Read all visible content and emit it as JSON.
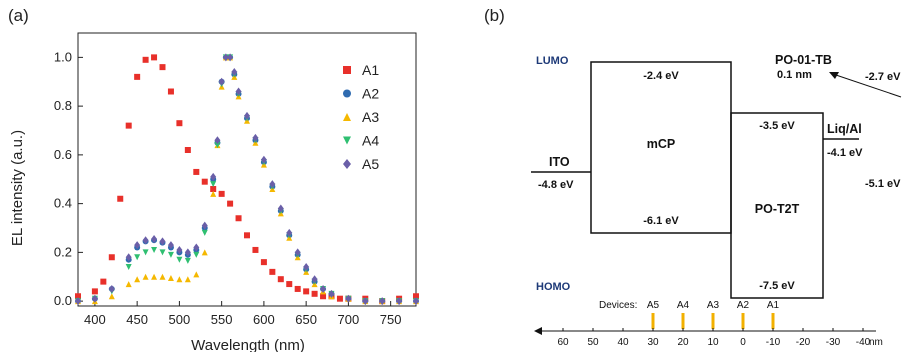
{
  "panel_a_label": "(a)",
  "panel_b_label": "(b)",
  "chart_data": {
    "type": "scatter",
    "xlabel": "Wavelength (nm)",
    "ylabel": "EL intensity (a.u.)",
    "xlim": [
      380,
      780
    ],
    "ylim": [
      -0.02,
      1.1
    ],
    "xticks": [
      400,
      450,
      500,
      550,
      600,
      650,
      700,
      750
    ],
    "yticks": [
      0.0,
      0.2,
      0.4,
      0.6,
      0.8,
      1.0
    ],
    "tick_labels_x": [
      "400",
      "450",
      "500",
      "550",
      "600",
      "650",
      "700",
      "750"
    ],
    "tick_labels_y": [
      "0.0",
      "0.2",
      "0.4",
      "0.6",
      "0.8",
      "1.0"
    ],
    "legend_position": "top-right",
    "grid": false,
    "series": [
      {
        "name": "A1",
        "color": "#e8302a",
        "marker": "square",
        "x": [
          380,
          400,
          410,
          420,
          430,
          440,
          450,
          460,
          470,
          480,
          490,
          500,
          510,
          520,
          530,
          540,
          550,
          560,
          570,
          580,
          590,
          600,
          610,
          620,
          630,
          640,
          650,
          660,
          670,
          680,
          690,
          700,
          720,
          740,
          760,
          780
        ],
        "y": [
          0.02,
          0.04,
          0.08,
          0.18,
          0.42,
          0.72,
          0.92,
          0.99,
          1.0,
          0.96,
          0.86,
          0.73,
          0.62,
          0.53,
          0.49,
          0.46,
          0.44,
          0.4,
          0.34,
          0.27,
          0.21,
          0.16,
          0.12,
          0.09,
          0.07,
          0.05,
          0.04,
          0.03,
          0.02,
          0.02,
          0.01,
          0.01,
          0.01,
          0.0,
          0.01,
          0.02
        ]
      },
      {
        "name": "A2",
        "color": "#2f6bb0",
        "marker": "circle",
        "x": [
          380,
          400,
          420,
          440,
          450,
          460,
          470,
          480,
          490,
          500,
          510,
          520,
          530,
          540,
          545,
          550,
          555,
          560,
          565,
          570,
          580,
          590,
          600,
          610,
          620,
          630,
          640,
          650,
          660,
          670,
          680,
          700,
          720,
          740,
          760,
          780
        ],
        "y": [
          0.0,
          0.01,
          0.05,
          0.17,
          0.22,
          0.245,
          0.25,
          0.24,
          0.22,
          0.2,
          0.19,
          0.21,
          0.3,
          0.5,
          0.65,
          0.9,
          1.0,
          1.0,
          0.93,
          0.85,
          0.75,
          0.66,
          0.57,
          0.47,
          0.37,
          0.27,
          0.19,
          0.13,
          0.08,
          0.05,
          0.03,
          0.01,
          0.0,
          0.0,
          0.0,
          0.0
        ]
      },
      {
        "name": "A3",
        "color": "#f5b800",
        "marker": "triangle-up",
        "x": [
          380,
          400,
          420,
          440,
          450,
          460,
          470,
          480,
          490,
          500,
          510,
          520,
          530,
          540,
          545,
          550,
          555,
          560,
          565,
          570,
          580,
          590,
          600,
          610,
          620,
          630,
          640,
          650,
          660,
          670,
          680,
          700,
          720,
          740,
          760,
          780
        ],
        "y": [
          0.0,
          0.0,
          0.02,
          0.07,
          0.09,
          0.1,
          0.1,
          0.1,
          0.095,
          0.09,
          0.09,
          0.11,
          0.2,
          0.44,
          0.64,
          0.88,
          1.0,
          1.0,
          0.92,
          0.84,
          0.74,
          0.65,
          0.56,
          0.46,
          0.36,
          0.26,
          0.18,
          0.12,
          0.07,
          0.04,
          0.02,
          0.01,
          0.0,
          0.0,
          0.0,
          0.0
        ]
      },
      {
        "name": "A4",
        "color": "#2fbf71",
        "marker": "triangle-down",
        "x": [
          380,
          400,
          420,
          440,
          450,
          460,
          470,
          480,
          490,
          500,
          510,
          520,
          530,
          540,
          545,
          550,
          555,
          560,
          565,
          570,
          580,
          590,
          600,
          610,
          620,
          630,
          640,
          650,
          660,
          670,
          680,
          700,
          720,
          740,
          760,
          780
        ],
        "y": [
          0.0,
          0.01,
          0.04,
          0.14,
          0.18,
          0.2,
          0.21,
          0.2,
          0.19,
          0.17,
          0.165,
          0.19,
          0.28,
          0.48,
          0.64,
          0.89,
          1.0,
          1.0,
          0.93,
          0.85,
          0.75,
          0.66,
          0.57,
          0.47,
          0.37,
          0.27,
          0.19,
          0.13,
          0.08,
          0.05,
          0.03,
          0.01,
          0.0,
          0.0,
          0.0,
          0.0
        ]
      },
      {
        "name": "A5",
        "color": "#6a5fa8",
        "marker": "diamond",
        "x": [
          380,
          400,
          420,
          440,
          450,
          460,
          470,
          480,
          490,
          500,
          510,
          520,
          530,
          540,
          545,
          550,
          555,
          560,
          565,
          570,
          580,
          590,
          600,
          610,
          620,
          630,
          640,
          650,
          660,
          670,
          680,
          700,
          720,
          740,
          760,
          780
        ],
        "y": [
          0.0,
          0.01,
          0.05,
          0.18,
          0.23,
          0.25,
          0.255,
          0.245,
          0.23,
          0.21,
          0.2,
          0.22,
          0.31,
          0.51,
          0.66,
          0.9,
          1.0,
          1.0,
          0.94,
          0.86,
          0.76,
          0.67,
          0.58,
          0.48,
          0.38,
          0.28,
          0.2,
          0.14,
          0.09,
          0.05,
          0.03,
          0.01,
          0.0,
          0.0,
          0.0,
          0.0
        ]
      }
    ]
  },
  "diagram": {
    "lumo_label": "LUMO",
    "homo_label": "HOMO",
    "ito": {
      "name": "ITO",
      "level": "-4.8 eV"
    },
    "mcp": {
      "name": "mCP",
      "lumo": "-2.4 eV",
      "homo": "-6.1 eV"
    },
    "pot2t": {
      "name": "PO-T2T",
      "lumo": "-3.5 eV",
      "homo": "-7.5 eV"
    },
    "liqal": {
      "name": "Liq/Al",
      "level": "-4.1 eV"
    },
    "po01tb": {
      "name": "PO-01-TB",
      "thickness": "0.1 nm",
      "lumo": "-2.7 eV",
      "homo": "-5.1 eV"
    },
    "devices_label": "Devices:",
    "devices": [
      "A5",
      "A4",
      "A3",
      "A2",
      "A1"
    ],
    "scale_ticks": [
      "60",
      "50",
      "40",
      "30",
      "20",
      "10",
      "0",
      "-10",
      "-20",
      "-30",
      "-40"
    ],
    "scale_unit": "nm"
  }
}
